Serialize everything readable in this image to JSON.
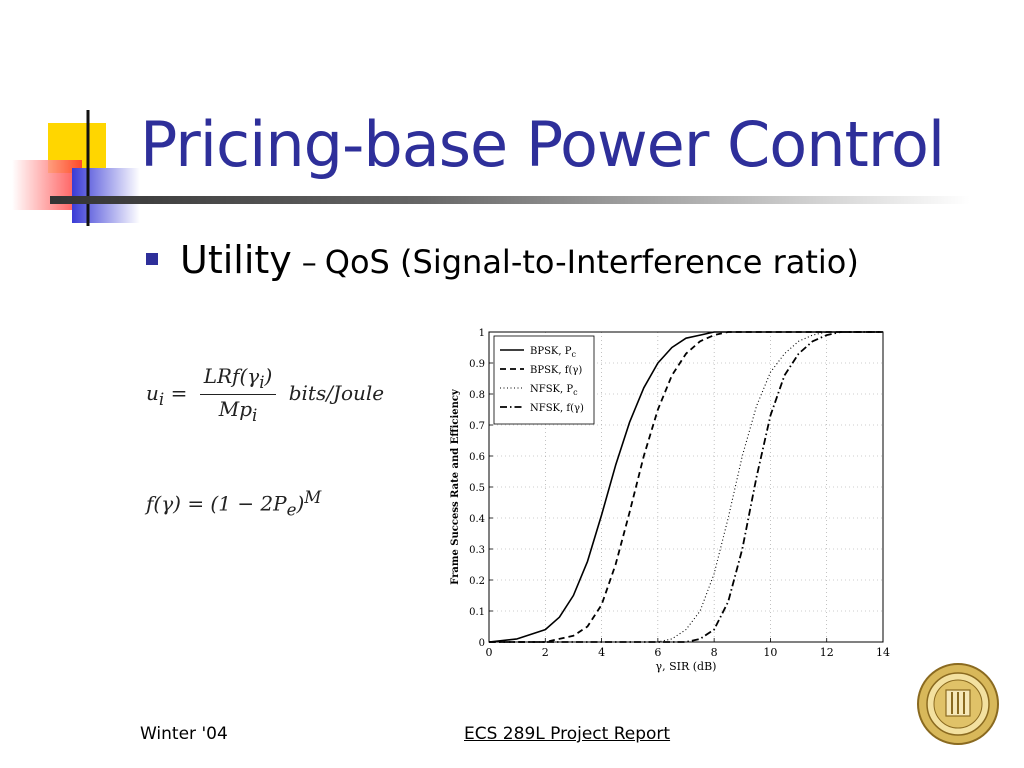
{
  "slide": {
    "title": "Pricing-base Power Control",
    "bullet": {
      "term": "Utility",
      "separator": "–",
      "detail": "QoS (Signal-to-Interference ratio)"
    },
    "formulas": {
      "utility": {
        "lhs": "u",
        "lhs_sub": "i",
        "numerator": "LRf(γ",
        "numerator_sub": "i",
        "numerator_end": ")",
        "denominator": "Mp",
        "denominator_sub": "i",
        "units": "bits/Joule"
      },
      "efficiency": {
        "text": "f(γ) = (1 − 2P",
        "sub": "e",
        "close": ")",
        "sup": "M"
      }
    },
    "footer": {
      "left": "Winter '04",
      "center": "ECS 289L Project Report"
    },
    "colors": {
      "title": "#2e2f9a",
      "bullet": "#2e2f9a",
      "deco_yellow": "#ffd600",
      "deco_blue": "#3a3bd6",
      "deco_red": "#ff3a3a"
    }
  },
  "chart_data": {
    "type": "line",
    "xlabel": "γ, SIR (dB)",
    "ylabel": "Frame Success Rate and Efficiency",
    "xlim": [
      0,
      14
    ],
    "ylim": [
      0,
      1
    ],
    "xticks": [
      0,
      2,
      4,
      6,
      8,
      10,
      12,
      14
    ],
    "yticks": [
      0,
      0.1,
      0.2,
      0.3,
      0.4,
      0.5,
      0.6,
      0.7,
      0.8,
      0.9,
      1
    ],
    "grid": true,
    "legend_position": "top-left",
    "series": [
      {
        "name": "BPSK, P",
        "name_sub": "c",
        "style": "solid",
        "x": [
          0,
          1,
          2,
          2.5,
          3,
          3.5,
          4,
          4.5,
          5,
          5.5,
          6,
          6.5,
          7,
          7.5,
          8,
          9,
          10,
          12,
          14
        ],
        "y": [
          0,
          0.01,
          0.04,
          0.08,
          0.15,
          0.26,
          0.41,
          0.57,
          0.71,
          0.82,
          0.9,
          0.95,
          0.98,
          0.99,
          1,
          1,
          1,
          1,
          1
        ]
      },
      {
        "name": "BPSK, f(γ)",
        "style": "dashed",
        "x": [
          0,
          1,
          2,
          2.5,
          3,
          3.5,
          4,
          4.5,
          5,
          5.5,
          6,
          6.5,
          7,
          7.5,
          8,
          8.5,
          9,
          10,
          12,
          14
        ],
        "y": [
          0,
          0,
          0,
          0.01,
          0.02,
          0.05,
          0.12,
          0.25,
          0.42,
          0.6,
          0.75,
          0.86,
          0.93,
          0.97,
          0.99,
          1,
          1,
          1,
          1,
          1
        ]
      },
      {
        "name": "NFSK, P",
        "name_sub": "c",
        "style": "dotted",
        "x": [
          0,
          6,
          6.5,
          7,
          7.5,
          8,
          8.5,
          9,
          9.5,
          10,
          10.5,
          11,
          11.5,
          12,
          12.5,
          13,
          14
        ],
        "y": [
          0,
          0,
          0.01,
          0.04,
          0.1,
          0.22,
          0.4,
          0.6,
          0.76,
          0.87,
          0.93,
          0.97,
          0.99,
          1,
          1,
          1,
          1
        ]
      },
      {
        "name": "NFSK, f(γ)",
        "style": "dashdot",
        "x": [
          0,
          7,
          7.5,
          8,
          8.5,
          9,
          9.5,
          10,
          10.5,
          11,
          11.5,
          12,
          12.5,
          13,
          14
        ],
        "y": [
          0,
          0,
          0.01,
          0.04,
          0.13,
          0.3,
          0.53,
          0.73,
          0.86,
          0.93,
          0.97,
          0.99,
          1,
          1,
          1
        ]
      }
    ]
  }
}
